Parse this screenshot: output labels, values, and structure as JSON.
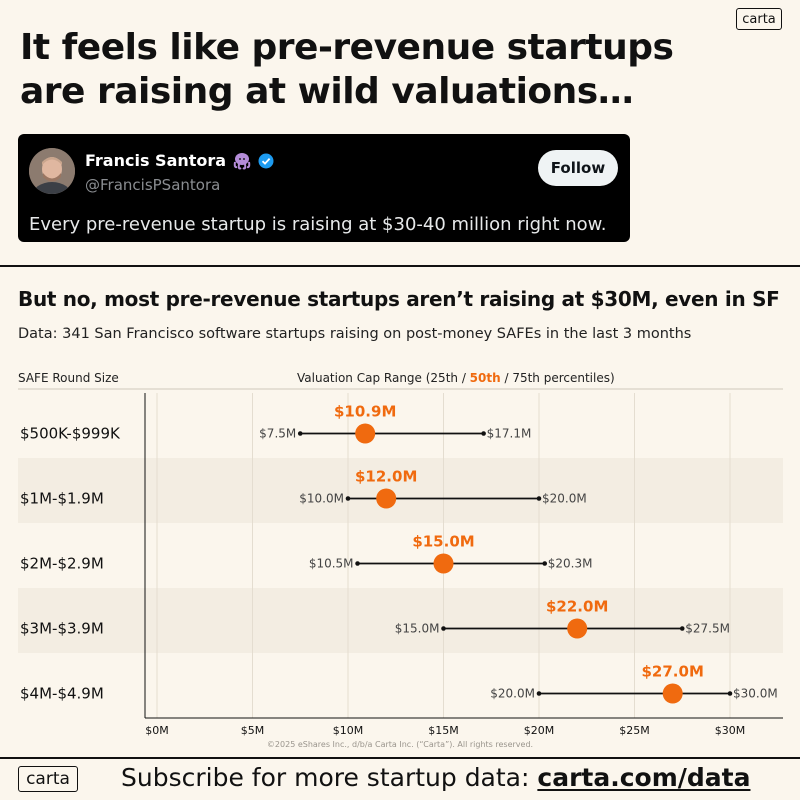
{
  "brand": {
    "logo_text": "carta"
  },
  "headline": "It feels like pre-revenue startups are raising at wild valuations…",
  "tweet": {
    "name": "Francis Santora",
    "handle": "@FrancisPSantora",
    "follow_label": "Follow",
    "text": "Every pre-revenue startup is raising at $30-40 million right now.",
    "icons": [
      "octopus-emoji-icon",
      "verified-badge-icon"
    ]
  },
  "subtitle": "But no, most pre-revenue startups aren’t raising at $30M, even in SF",
  "data_note": "Data: 341 San Francisco software startups raising on post-money SAFEs in the last 3 months",
  "column_headers": {
    "left": "SAFE Round Size",
    "right_prefix": "Valuation Cap Range (25th / ",
    "right_highlight": "50th",
    "right_suffix": " / 75th percentiles)"
  },
  "colors": {
    "accent": "#f06a0f",
    "background": "#fbf6ed",
    "band": "#f3ede2"
  },
  "chart_data": {
    "type": "range-dot",
    "categories": [
      "$500K-$999K",
      "$1M-$1.9M",
      "$2M-$2.9M",
      "$3M-$3.9M",
      "$4M-$4.9M"
    ],
    "p25": [
      7.5,
      10.0,
      10.5,
      15.0,
      20.0
    ],
    "p50": [
      10.9,
      12.0,
      15.0,
      22.0,
      27.0
    ],
    "p75": [
      17.1,
      20.0,
      20.3,
      27.5,
      30.0
    ],
    "p25_labels": [
      "$7.5M",
      "$10.0M",
      "$10.5M",
      "$15.0M",
      "$20.0M"
    ],
    "p50_labels": [
      "$10.9M",
      "$12.0M",
      "$15.0M",
      "$22.0M",
      "$27.0M"
    ],
    "p75_labels": [
      "$17.1M",
      "$20.0M",
      "$20.3M",
      "$27.5M",
      "$30.0M"
    ],
    "xlim": [
      0,
      33
    ],
    "xticks": [
      0,
      5,
      10,
      15,
      20,
      25,
      30
    ],
    "xtick_labels": [
      "$0M",
      "$5M",
      "$10M",
      "$15M",
      "$20M",
      "$25M",
      "$30M"
    ],
    "grid": true
  },
  "copyright": "©2025 eShares Inc., d/b/a Carta Inc. (“Carta”). All rights reserved.",
  "footer": {
    "subscribe_text": "Subscribe for more startup data: ",
    "subscribe_link": "carta.com/data"
  }
}
